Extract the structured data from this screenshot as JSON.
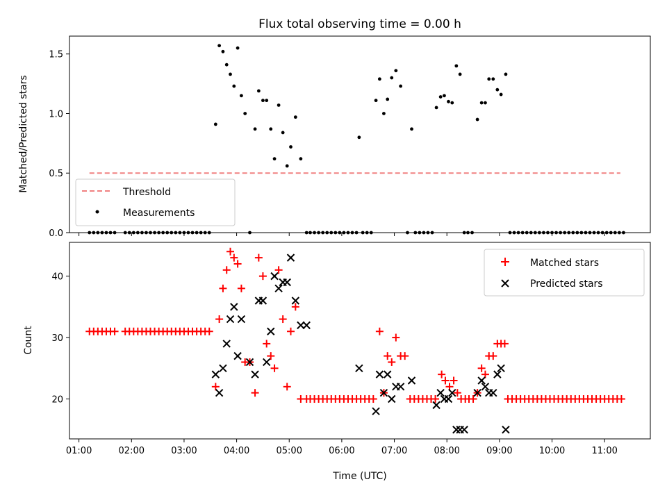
{
  "colors": {
    "threshold": "#f08080",
    "measurement": "#000000",
    "matched": "#ff0000",
    "predicted": "#000000"
  },
  "chart_data": [
    {
      "type": "scatter",
      "title": "Flux total observing time = 0.00 h",
      "ylabel": "Matched/Predicted stars",
      "xlim": [
        0.82,
        11.87
      ],
      "ylim": [
        0,
        1.65
      ],
      "yticks": [
        "0.0",
        "0.5",
        "1.0",
        "1.5"
      ],
      "ytick_values": [
        0,
        0.5,
        1.0,
        1.5
      ],
      "legend_position": "lower-left",
      "threshold": {
        "name": "Threshold",
        "y": 0.5,
        "x": [
          1.2,
          11.3
        ]
      },
      "measurements": {
        "name": "Measurements",
        "x": [
          1.2,
          1.28,
          1.36,
          1.44,
          1.52,
          1.6,
          1.68,
          1.88,
          1.96,
          2.04,
          2.12,
          2.2,
          2.28,
          2.36,
          2.44,
          2.52,
          2.6,
          2.68,
          2.76,
          2.84,
          2.92,
          3.0,
          3.08,
          3.16,
          3.24,
          3.32,
          3.4,
          3.48,
          3.6,
          3.67,
          3.74,
          3.81,
          3.88,
          3.95,
          4.02,
          4.09,
          4.16,
          4.25,
          4.35,
          4.42,
          4.5,
          4.57,
          4.65,
          4.72,
          4.8,
          4.88,
          4.96,
          5.03,
          5.12,
          5.22,
          5.33,
          5.4,
          5.48,
          5.56,
          5.64,
          5.72,
          5.8,
          5.88,
          5.96,
          6.04,
          6.12,
          6.2,
          6.28,
          6.33,
          6.4,
          6.48,
          6.56,
          6.65,
          6.72,
          6.8,
          6.87,
          6.95,
          7.03,
          7.12,
          7.25,
          7.33,
          7.4,
          7.48,
          7.56,
          7.64,
          7.72,
          7.8,
          7.88,
          7.95,
          8.03,
          8.1,
          8.18,
          8.25,
          8.33,
          8.4,
          8.48,
          8.58,
          8.66,
          8.73,
          8.8,
          8.88,
          8.96,
          9.03,
          9.12,
          9.2,
          9.28,
          9.36,
          9.44,
          9.52,
          9.6,
          9.68,
          9.76,
          9.84,
          9.92,
          10.0,
          10.08,
          10.16,
          10.24,
          10.32,
          10.4,
          10.48,
          10.56,
          10.64,
          10.72,
          10.8,
          10.88,
          10.96,
          11.04,
          11.12,
          11.2,
          11.28,
          11.36
        ],
        "y": [
          0,
          0,
          0,
          0,
          0,
          0,
          0,
          0,
          0,
          0,
          0,
          0,
          0,
          0,
          0,
          0,
          0,
          0,
          0,
          0,
          0,
          0,
          0,
          0,
          0,
          0,
          0,
          0,
          0.91,
          1.57,
          1.52,
          1.41,
          1.33,
          1.23,
          1.55,
          1.15,
          1.0,
          0,
          0.87,
          1.19,
          1.11,
          1.11,
          0.87,
          0.62,
          1.07,
          0.84,
          0.56,
          0.72,
          0.97,
          0.62,
          0,
          0,
          0,
          0,
          0,
          0,
          0,
          0,
          0,
          0,
          0,
          0,
          0,
          0.8,
          0,
          0,
          0,
          1.11,
          1.29,
          1.0,
          1.12,
          1.3,
          1.36,
          1.23,
          0,
          0.87,
          0,
          0,
          0,
          0,
          0,
          1.05,
          1.14,
          1.15,
          1.1,
          1.09,
          1.4,
          1.33,
          0,
          0,
          0,
          0.95,
          1.09,
          1.09,
          1.29,
          1.29,
          1.2,
          1.16,
          1.33,
          0,
          0,
          0,
          0,
          0,
          0,
          0,
          0,
          0,
          0,
          0,
          0,
          0,
          0,
          0,
          0,
          0,
          0,
          0,
          0,
          0,
          0,
          0,
          0,
          0,
          0,
          0,
          0
        ]
      }
    },
    {
      "type": "scatter",
      "xlabel": "Time (UTC)",
      "ylabel": "Count",
      "xlim": [
        0.82,
        11.87
      ],
      "ylim": [
        13.5,
        45.5
      ],
      "xticks": [
        "01:00",
        "02:00",
        "03:00",
        "04:00",
        "05:00",
        "06:00",
        "07:00",
        "08:00",
        "09:00",
        "10:00",
        "11:00"
      ],
      "xtick_values": [
        1,
        2,
        3,
        4,
        5,
        6,
        7,
        8,
        9,
        10,
        11
      ],
      "yticks": [
        "20",
        "30",
        "40"
      ],
      "ytick_values": [
        20,
        30,
        40
      ],
      "legend_position": "top-right",
      "matched": {
        "name": "Matched stars",
        "x": [
          1.2,
          1.28,
          1.36,
          1.44,
          1.52,
          1.6,
          1.68,
          1.88,
          1.96,
          2.04,
          2.12,
          2.2,
          2.28,
          2.36,
          2.44,
          2.52,
          2.6,
          2.68,
          2.76,
          2.84,
          2.92,
          3.0,
          3.08,
          3.16,
          3.24,
          3.32,
          3.4,
          3.48,
          3.6,
          3.67,
          3.74,
          3.81,
          3.88,
          3.95,
          4.02,
          4.09,
          4.16,
          4.25,
          4.35,
          4.42,
          4.5,
          4.57,
          4.65,
          4.72,
          4.8,
          4.88,
          4.96,
          5.03,
          5.12,
          5.22,
          5.33,
          5.4,
          5.48,
          5.56,
          5.64,
          5.72,
          5.8,
          5.88,
          5.96,
          6.04,
          6.12,
          6.2,
          6.28,
          6.36,
          6.44,
          6.52,
          6.6,
          6.72,
          6.8,
          6.87,
          6.95,
          7.03,
          7.12,
          7.2,
          7.3,
          7.38,
          7.46,
          7.54,
          7.62,
          7.7,
          7.78,
          7.9,
          7.97,
          8.05,
          8.13,
          8.2,
          8.27,
          8.35,
          8.42,
          8.5,
          8.58,
          8.66,
          8.73,
          8.8,
          8.88,
          8.96,
          9.03,
          9.1,
          9.16,
          9.24,
          9.32,
          9.4,
          9.48,
          9.56,
          9.64,
          9.72,
          9.8,
          9.88,
          9.96,
          10.04,
          10.12,
          10.2,
          10.28,
          10.36,
          10.44,
          10.52,
          10.6,
          10.68,
          10.76,
          10.84,
          10.92,
          11.0,
          11.08,
          11.16,
          11.24,
          11.32
        ],
        "y": [
          31,
          31,
          31,
          31,
          31,
          31,
          31,
          31,
          31,
          31,
          31,
          31,
          31,
          31,
          31,
          31,
          31,
          31,
          31,
          31,
          31,
          31,
          31,
          31,
          31,
          31,
          31,
          31,
          22,
          33,
          38,
          41,
          44,
          43,
          42,
          38,
          26,
          26,
          21,
          43,
          40,
          29,
          27,
          25,
          41,
          33,
          22,
          31,
          35,
          20,
          20,
          20,
          20,
          20,
          20,
          20,
          20,
          20,
          20,
          20,
          20,
          20,
          20,
          20,
          20,
          20,
          20,
          31,
          21,
          27,
          26,
          30,
          27,
          27,
          20,
          20,
          20,
          20,
          20,
          20,
          20,
          24,
          23,
          22,
          23,
          21,
          20,
          20,
          20,
          20,
          21,
          25,
          24,
          27,
          27,
          29,
          29,
          29,
          20,
          20,
          20,
          20,
          20,
          20,
          20,
          20,
          20,
          20,
          20,
          20,
          20,
          20,
          20,
          20,
          20,
          20,
          20,
          20,
          20,
          20,
          20,
          20,
          20,
          20,
          20,
          20
        ]
      },
      "predicted": {
        "name": "Predicted stars",
        "x": [
          3.6,
          3.67,
          3.74,
          3.81,
          3.88,
          3.95,
          4.02,
          4.09,
          4.25,
          4.35,
          4.42,
          4.5,
          4.57,
          4.65,
          4.72,
          4.8,
          4.88,
          4.96,
          5.03,
          5.12,
          5.22,
          5.33,
          6.33,
          6.65,
          6.72,
          6.8,
          6.87,
          6.95,
          7.03,
          7.12,
          7.33,
          7.8,
          7.88,
          7.95,
          8.03,
          8.1,
          8.18,
          8.25,
          8.33,
          8.58,
          8.66,
          8.73,
          8.8,
          8.88,
          8.96,
          9.03,
          9.12
        ],
        "y": [
          24,
          21,
          25,
          29,
          33,
          35,
          27,
          33,
          26,
          24,
          36,
          36,
          26,
          31,
          40,
          38,
          39,
          39,
          43,
          36,
          32,
          32,
          25,
          18,
          24,
          21,
          24,
          20,
          22,
          22,
          23,
          19,
          21,
          20,
          20,
          21,
          15,
          15,
          15,
          21,
          23,
          22,
          21,
          21,
          24,
          25,
          15
        ]
      }
    }
  ]
}
